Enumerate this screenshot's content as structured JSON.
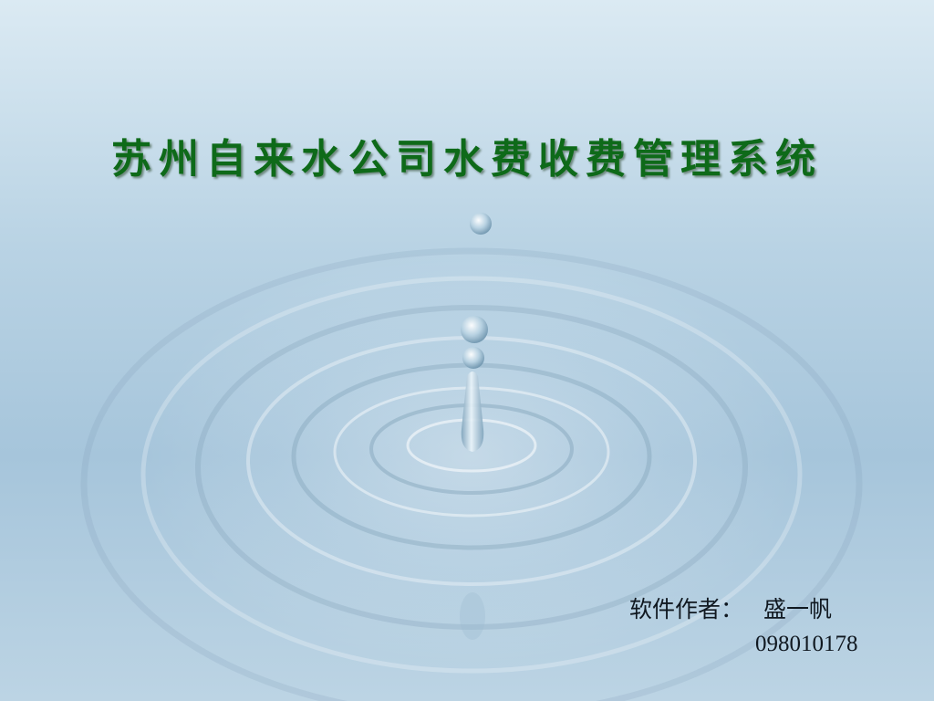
{
  "slide": {
    "title": "苏州自来水公司水费收费管理系统",
    "author_label": "软件作者：",
    "author_name": "盛一帆",
    "author_id": "098010178"
  },
  "colors": {
    "title": "#0e6a19",
    "text": "#101820",
    "background_top": "#dbeaf3",
    "background_mid": "#a6c5db"
  },
  "background": {
    "subject": "water-drop-ripple-image"
  }
}
